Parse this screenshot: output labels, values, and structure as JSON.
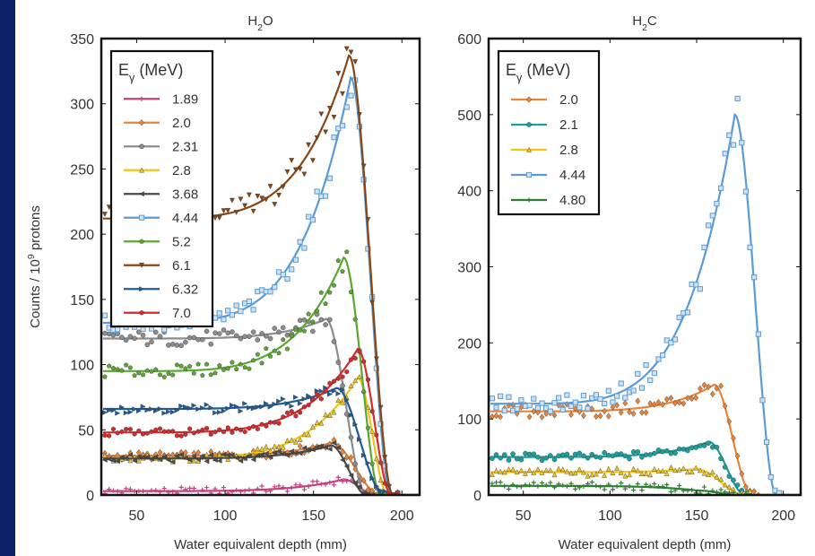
{
  "chart_data": [
    {
      "type": "line",
      "title_main": "H",
      "title_sub": "2",
      "title_end": "O",
      "xlabel": "Water equivalent depth (mm)",
      "ylabel": "Counts / 10",
      "ylabel_sup": "9",
      "ylabel_end": " protons",
      "xlim": [
        30,
        210
      ],
      "ylim": [
        0,
        350
      ],
      "xticks": [
        50,
        100,
        150,
        200
      ],
      "yticks": [
        0,
        50,
        100,
        150,
        200,
        250,
        300,
        350
      ],
      "legend_title": "E",
      "legend_title_sub": "γ",
      "legend_title_end": " (MeV)",
      "legend_placement": "top-left",
      "series": [
        {
          "name": "1.89",
          "color": "#c2417f",
          "marker": "plus",
          "flat": 3,
          "peak": 12,
          "peak_x": 167,
          "end_x": 185
        },
        {
          "name": "2.0",
          "color": "#e8833a",
          "marker": "diamond",
          "flat": 30,
          "peak": 40,
          "peak_x": 160,
          "end_x": 188
        },
        {
          "name": "2.31",
          "color": "#8c8c8c",
          "marker": "circle",
          "flat": 120,
          "peak": 135,
          "peak_x": 157,
          "end_x": 180
        },
        {
          "name": "2.8",
          "color": "#f0c419",
          "marker": "triangle",
          "flat": 28,
          "peak": 90,
          "peak_x": 175,
          "end_x": 192
        },
        {
          "name": "3.68",
          "color": "#4a4a4a",
          "marker": "triangle-left",
          "flat": 28,
          "peak": 38,
          "peak_x": 160,
          "end_x": 180
        },
        {
          "name": "4.44",
          "color": "#5b9bd5",
          "marker": "square",
          "flat": 132,
          "peak": 320,
          "peak_x": 171,
          "end_x": 194
        },
        {
          "name": "5.2",
          "color": "#5aa832",
          "marker": "pentagon",
          "flat": 95,
          "peak": 182,
          "peak_x": 167,
          "end_x": 188
        },
        {
          "name": "6.1",
          "color": "#8b4513",
          "marker": "triangle-down",
          "flat": 212,
          "peak": 337,
          "peak_x": 170,
          "end_x": 195
        },
        {
          "name": "6.32",
          "color": "#1f5d99",
          "marker": "triangle-right",
          "flat": 66,
          "peak": 82,
          "peak_x": 163,
          "end_x": 190
        },
        {
          "name": "7.0",
          "color": "#d42c2c",
          "marker": "hexagon",
          "flat": 48,
          "peak": 112,
          "peak_x": 175,
          "end_x": 194
        }
      ]
    },
    {
      "type": "line",
      "title_main": "H",
      "title_sub": "2",
      "title_end": "C",
      "xlabel": "Water equivalent depth (mm)",
      "xlim": [
        30,
        210
      ],
      "ylim": [
        0,
        600
      ],
      "xticks": [
        50,
        100,
        150,
        200
      ],
      "yticks": [
        0,
        100,
        200,
        300,
        400,
        500,
        600
      ],
      "legend_title": "E",
      "legend_title_sub": "γ",
      "legend_title_end": " (MeV)",
      "legend_placement": "top-left",
      "series": [
        {
          "name": "2.0",
          "color": "#e8833a",
          "marker": "diamond",
          "flat": 110,
          "peak": 145,
          "peak_x": 160,
          "end_x": 182
        },
        {
          "name": "2.1",
          "color": "#1a9e9e",
          "marker": "circle",
          "flat": 50,
          "peak": 70,
          "peak_x": 157,
          "end_x": 178
        },
        {
          "name": "2.8",
          "color": "#f0c419",
          "marker": "triangle",
          "flat": 30,
          "peak": 34,
          "peak_x": 150,
          "end_x": 178
        },
        {
          "name": "4.44",
          "color": "#5b9bd5",
          "marker": "square",
          "flat": 120,
          "peak": 500,
          "peak_x": 172,
          "end_x": 196
        },
        {
          "name": "4.80",
          "color": "#2e7d32",
          "marker": "plus",
          "flat": 12,
          "peak": 6,
          "peak_x": 150,
          "end_x": 175
        }
      ]
    }
  ]
}
